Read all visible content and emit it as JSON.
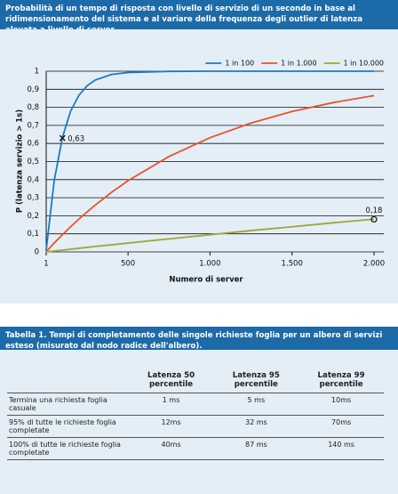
{
  "chart_data": {
    "type": "line",
    "title": "Probabilità di un tempo di risposta con livello di servizio di un secondo in base al ridimensionamento del sistema e al variare della frequenza degli outlier di latenza elevata a livello di server.",
    "x_label": "Numero di server",
    "y_label": "P (latenza servizio > 1s)",
    "x": [
      1,
      50,
      100,
      150,
      200,
      250,
      300,
      400,
      500,
      750,
      1000,
      1250,
      1500,
      1750,
      2000
    ],
    "series": [
      {
        "name": "1 in 100",
        "color": "#1b7bc0",
        "values": [
          0.01,
          0.395,
          0.634,
          0.779,
          0.866,
          0.919,
          0.951,
          0.982,
          0.993,
          0.999,
          1.0,
          1.0,
          1.0,
          1.0,
          1.0
        ]
      },
      {
        "name": "1 in 1.000",
        "color": "#e8532a",
        "values": [
          0.001,
          0.049,
          0.095,
          0.139,
          0.181,
          0.221,
          0.259,
          0.33,
          0.394,
          0.528,
          0.632,
          0.713,
          0.777,
          0.826,
          0.865
        ]
      },
      {
        "name": "1 in 10.000",
        "color": "#9ea832",
        "values": [
          0.0001,
          0.005,
          0.01,
          0.015,
          0.02,
          0.025,
          0.03,
          0.039,
          0.049,
          0.072,
          0.095,
          0.118,
          0.139,
          0.161,
          0.181
        ]
      }
    ],
    "annotations": [
      {
        "x": 100,
        "y": 0.63,
        "text": "0,63",
        "marker": "x"
      },
      {
        "x": 2000,
        "y": 0.18,
        "text": "0,18",
        "marker": "circle"
      }
    ],
    "xlim": [
      1,
      2000
    ],
    "ylim": [
      0,
      1
    ],
    "xticks": [
      1,
      500,
      {
        "value": 1000,
        "label": "1.000"
      },
      {
        "value": 1500,
        "label": "1.500"
      },
      {
        "value": 2000,
        "label": "2.000"
      }
    ],
    "yticks": [
      0,
      {
        "value": 0.1,
        "label": "0,1"
      },
      {
        "value": 0.2,
        "label": "0,2"
      },
      {
        "value": 0.3,
        "label": "0,3"
      },
      {
        "value": 0.4,
        "label": "0,4"
      },
      {
        "value": 0.5,
        "label": "0,5"
      },
      {
        "value": 0.6,
        "label": "0,6"
      },
      {
        "value": 0.7,
        "label": "0,7"
      },
      {
        "value": 0.8,
        "label": "0,8"
      },
      {
        "value": 0.9,
        "label": "0,9"
      },
      1
    ],
    "grid": true,
    "legend": "top-right"
  },
  "table": {
    "title": "Tabella 1. Tempi di completamento delle singole richieste foglia per un albero di servizi esteso (misurato dal nodo radice dell'albero).",
    "columns": [
      "Latenza 50 percentile",
      "Latenza 95 percentile",
      "Latenza 99 percentile"
    ],
    "rows": [
      [
        "Termina una richiesta foglia casuale",
        "1 ms",
        "5 ms",
        "10ms"
      ],
      [
        "95% di tutte le richieste foglia completate",
        "12ms",
        "32 ms",
        "70ms"
      ],
      [
        "100% di tutte le richieste foglia completate",
        "40ms",
        "87 ms",
        "140 ms"
      ]
    ]
  }
}
